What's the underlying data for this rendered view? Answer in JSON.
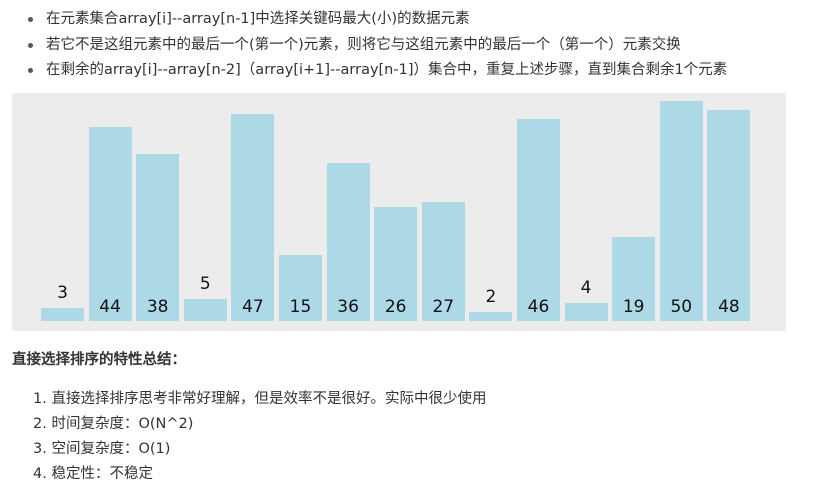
{
  "bullets": [
    "在元素集合array[i]--array[n-1]中选择关键码最大(小)的数据元素",
    "若它不是这组元素中的最后一个(第一个)元素，则将它与这组元素中的最后一个（第一个）元素交换",
    "在剩余的array[i]--array[n-2]（array[i+1]--array[n-1]）集合中，重复上述步骤，直到集合剩余1个元素"
  ],
  "chart_data": {
    "type": "bar",
    "values": [
      3,
      44,
      38,
      5,
      47,
      15,
      36,
      26,
      27,
      2,
      46,
      4,
      19,
      50,
      48
    ],
    "bar_color": "#add8e6",
    "background": "#ececec"
  },
  "summary": {
    "title": "直接选择排序的特性总结：",
    "items": [
      "1. 直接选择排序思考非常好理解，但是效率不是很好。实际中很少使用",
      "2. 时间复杂度：O(N^2)",
      "3. 空间复杂度：O(1)",
      "4. 稳定性：不稳定"
    ]
  }
}
